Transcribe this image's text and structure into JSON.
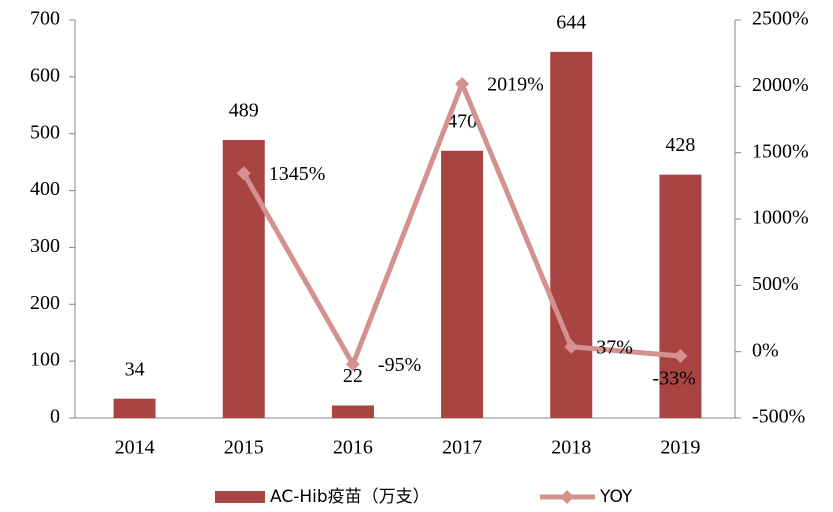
{
  "chart_data": {
    "type": "bar",
    "categories": [
      "2014",
      "2015",
      "2016",
      "2017",
      "2018",
      "2019"
    ],
    "series": [
      {
        "name": "AC-Hib疫苗（万支）",
        "type": "bar",
        "color": "#a84442",
        "values": [
          34,
          489,
          22,
          470,
          644,
          428
        ]
      },
      {
        "name": "YOY",
        "type": "line",
        "axis": "y2",
        "color": "#d4918f",
        "values": [
          null,
          1345,
          -95,
          2019,
          37,
          -33
        ],
        "value_labels": [
          null,
          "1345%",
          "-95%",
          "2019%",
          "37%",
          "-33%"
        ]
      }
    ],
    "ylim": [
      0,
      700
    ],
    "yticks": [
      0,
      100,
      200,
      300,
      400,
      500,
      600,
      700
    ],
    "y2lim": [
      -500,
      2500
    ],
    "y2ticks": [
      {
        "value": -500,
        "label": "-500%"
      },
      {
        "value": 0,
        "label": "0%"
      },
      {
        "value": 500,
        "label": "500%"
      },
      {
        "value": 1000,
        "label": "1000%"
      },
      {
        "value": 1500,
        "label": "1500%"
      },
      {
        "value": 2000,
        "label": "2000%"
      },
      {
        "value": 2500,
        "label": "2500%"
      }
    ],
    "legend": "bottom"
  }
}
